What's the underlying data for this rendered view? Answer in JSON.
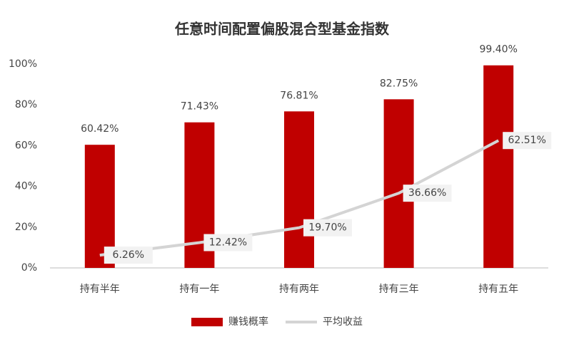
{
  "chart_data": {
    "type": "bar",
    "title": "任意时间配置偏股混合型基金指数",
    "categories": [
      "持有半年",
      "持有一年",
      "持有两年",
      "持有三年",
      "持有五年"
    ],
    "series": [
      {
        "name": "赚钱概率",
        "type": "bar",
        "color": "#c00000",
        "values": [
          60.42,
          71.43,
          76.81,
          82.75,
          99.4
        ],
        "value_labels": [
          "60.42%",
          "71.43%",
          "76.81%",
          "82.75%",
          "99.40%"
        ]
      },
      {
        "name": "平均收益",
        "type": "line",
        "color": "#d4d4d4",
        "values": [
          6.26,
          12.42,
          19.7,
          36.66,
          62.51
        ],
        "value_labels": [
          "6.26%",
          "12.42%",
          "19.70%",
          "36.66%",
          "62.51%"
        ]
      }
    ],
    "ylim": [
      0,
      100
    ],
    "yticks": [
      {
        "value": 0,
        "label": "0%"
      },
      {
        "value": 20,
        "label": "20%"
      },
      {
        "value": 40,
        "label": "40%"
      },
      {
        "value": 60,
        "label": "60%"
      },
      {
        "value": 80,
        "label": "80%"
      },
      {
        "value": 100,
        "label": "100%"
      }
    ],
    "grid": false,
    "legend": "bottom"
  }
}
